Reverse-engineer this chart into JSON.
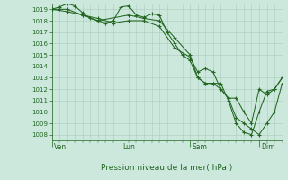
{
  "xlabel": "Pression niveau de la mer( hPa )",
  "background_color": "#cce8dd",
  "grid_color": "#aaccbb",
  "line_color": "#226622",
  "ylim": [
    1007.5,
    1019.5
  ],
  "yticks": [
    1008,
    1009,
    1010,
    1011,
    1012,
    1013,
    1014,
    1015,
    1016,
    1017,
    1018,
    1019
  ],
  "xlim": [
    0,
    240
  ],
  "day_major_ticks": [
    0,
    72,
    144,
    216
  ],
  "day_labels": [
    "Ven",
    "Lun",
    "Sam",
    "Dim"
  ],
  "minor_tick_interval": 8,
  "series": [
    {
      "x": [
        0,
        8,
        16,
        24,
        32,
        40,
        48,
        56,
        64,
        72,
        80,
        88,
        96,
        104,
        112,
        120,
        128,
        136,
        144,
        152,
        160,
        168,
        176,
        184,
        192,
        200,
        208,
        216,
        224,
        232,
        240
      ],
      "y": [
        1019.0,
        1019.2,
        1019.5,
        1019.3,
        1018.7,
        1018.2,
        1018.0,
        1017.8,
        1018.0,
        1019.2,
        1019.3,
        1018.5,
        1018.3,
        1018.6,
        1018.5,
        1017.0,
        1016.0,
        1015.0,
        1014.5,
        1013.0,
        1012.5,
        1012.5,
        1012.5,
        1011.0,
        1009.0,
        1008.2,
        1008.0,
        1010.0,
        1011.8,
        1012.0,
        1013.0
      ]
    },
    {
      "x": [
        0,
        16,
        32,
        48,
        64,
        80,
        96,
        112,
        128,
        144,
        152,
        160,
        168,
        176,
        184,
        192,
        200,
        208,
        216,
        224,
        232,
        240
      ],
      "y": [
        1019.0,
        1018.8,
        1018.5,
        1018.2,
        1017.8,
        1018.0,
        1018.0,
        1017.5,
        1015.6,
        1014.8,
        1013.5,
        1013.8,
        1013.5,
        1012.0,
        1011.2,
        1011.2,
        1010.0,
        1009.0,
        1012.0,
        1011.5,
        1012.0,
        1013.0
      ]
    },
    {
      "x": [
        0,
        8,
        16,
        32,
        48,
        80,
        96,
        112,
        128,
        144,
        152,
        160,
        168,
        176,
        184,
        192,
        200,
        208,
        216,
        224,
        232,
        240
      ],
      "y": [
        1019.0,
        1019.0,
        1019.0,
        1018.5,
        1018.0,
        1018.5,
        1018.2,
        1018.0,
        1016.5,
        1015.0,
        1013.0,
        1012.5,
        1012.5,
        1012.0,
        1011.2,
        1009.5,
        1009.0,
        1008.5,
        1008.0,
        1009.0,
        1010.0,
        1012.5
      ]
    }
  ]
}
